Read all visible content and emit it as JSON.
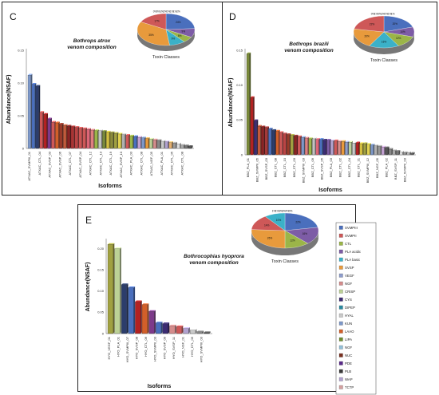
{
  "colors": {
    "SVMPIII": "#4a6fbd",
    "SVMPII": "#ce5858",
    "CTL": "#9bb548",
    "PLA acidic": "#7d5ca6",
    "PLA basic": "#3bb1c8",
    "SVSP": "#e89a3c",
    "VEGF": "#8e9dcc",
    "NGF": "#d48c8c",
    "CRISP": "#bcd196",
    "CYS": "#3c2c73",
    "DIPEP": "#2a8aa0",
    "HYAL": "#c9c9c9",
    "KUN": "#7d98c9",
    "LAAO": "#d25f2a",
    "LIPA": "#6e8c2f",
    "NGF2": "#93c0d8",
    "NUC": "#7a3020",
    "PDE": "#5a2a8a",
    "PLB": "#3a3a3a",
    "WAP": "#b1a2cf",
    "TCTP": "#d4a0a0"
  },
  "legend": [
    "SVMPIII",
    "SVMPII",
    "CTL",
    "PLA acidic",
    "PLA basic",
    "SVSP",
    "VEGF",
    "NGF",
    "CRISP",
    "CYS",
    "DIPEP",
    "HYAL",
    "KUN",
    "LAAO",
    "LIPA",
    "NGF",
    "NUC",
    "PDE",
    "PLB",
    "WAP",
    "TCTP"
  ],
  "chart_data": [
    {
      "type": "bar",
      "panel": "C",
      "title": "Bothrops atrox venom composition",
      "xlabel": "Isoforms",
      "ylabel": "Abundance(NSAF)",
      "ylim": [
        0,
        0.15
      ],
      "yticks": [
        "0",
        "0.05",
        "0.10",
        "0.15"
      ],
      "tick_labels": [
        "ATXAC_SVMPIII_01",
        "ATXAC_CTL_04",
        "ATXAC_SVSP_03",
        "ATXAC_SVSP_06",
        "ATXAC_CTL_07",
        "ATXAC_SVSP_04",
        "ATXAC_CTL_12",
        "ATXAC_CTL_13",
        "ATXAC_CTL_19",
        "ATXAC_SVSP_10",
        "ATXAC_PLA_03",
        "ATXAC_CTL_08",
        "ATXAC_NGF_05",
        "ATXAC_PLA_01",
        "ATXAC_CTL_05",
        "ATXAC_CTL_08"
      ],
      "values": [
        0.112,
        0.098,
        0.095,
        0.055,
        0.052,
        0.045,
        0.04,
        0.039,
        0.037,
        0.035,
        0.034,
        0.033,
        0.032,
        0.031,
        0.03,
        0.029,
        0.028,
        0.027,
        0.027,
        0.026,
        0.025,
        0.024,
        0.023,
        0.022,
        0.021,
        0.02,
        0.019,
        0.018,
        0.017,
        0.016,
        0.015,
        0.014,
        0.013,
        0.012,
        0.011,
        0.01,
        0.009,
        0.008,
        0.007,
        0.005,
        0.004,
        0.003
      ],
      "bar_colors": [
        "#7d98c9",
        "#4a6fbd",
        "#2c3d6b",
        "#ce5858",
        "#b22222",
        "#7d3a8a",
        "#ce5858",
        "#d25f2a",
        "#9a3a2a",
        "#c25a3a",
        "#8b2222",
        "#a33",
        "#b44",
        "#c55",
        "#ce5858",
        "#d67",
        "#e08080",
        "#9bb548",
        "#c2c2c2",
        "#7a8a3a",
        "#d4c040",
        "#8b8b3a",
        "#a0a040",
        "#e0d050",
        "#b0b0b0",
        "#ce5858",
        "#9bb548",
        "#4a6fbd",
        "#c2a0d0",
        "#7d98c9",
        "#e89a3c",
        "#bcd196",
        "#d48c8c",
        "#888",
        "#c9c9c9",
        "#b1a2cf",
        "#e5b070",
        "#999",
        "#ddd",
        "#aaa",
        "#777",
        "#555"
      ],
      "inset": {
        "title": "Toxin Classes",
        "values": [
          24,
          9,
          6,
          9,
          35,
          17
        ],
        "colors": [
          "#4a6fbd",
          "#7d5ca6",
          "#9bb548",
          "#3bb1c8",
          "#e89a3c",
          "#ce5858"
        ],
        "labels": [
          "24%",
          "9%",
          "6%",
          "9%",
          "35%",
          "17%"
        ],
        "small_labels": [
          "0%",
          "0%",
          "1%",
          "2%",
          "0%",
          "1%",
          "1%",
          "2%"
        ]
      }
    },
    {
      "type": "bar",
      "panel": "D",
      "title": "Bothrops brazili venom composition",
      "xlabel": "Isoforms",
      "ylabel": "Abundance(NSAF)",
      "ylim": [
        0,
        0.15
      ],
      "yticks": [
        "0",
        "0.05",
        "0.10",
        "0.15"
      ],
      "tick_labels": [
        "BBZ_PLA_01",
        "BBZ_SVMPII_05",
        "BBZ_SVSP_03",
        "BBZ_CTL_08",
        "BBZ_CTL_10",
        "BBZ_CTL_03",
        "BBZ_SVMPIII_03",
        "BBZ_CTL_09",
        "BBZ_SVSP_05",
        "BBZ_PLA_03",
        "BBZ_CTL_02",
        "BBZ_CTL_04",
        "BBZ_CTL_21",
        "BBZ_SVMPIII_12",
        "BBZ_NGF_05",
        "BBZ_PLA_02",
        "BBZ_SVSP_11",
        "BBZ_SVMPII_03"
      ],
      "values": [
        0.145,
        0.082,
        0.049,
        0.041,
        0.04,
        0.039,
        0.037,
        0.035,
        0.034,
        0.032,
        0.03,
        0.029,
        0.028,
        0.027,
        0.026,
        0.025,
        0.024,
        0.023,
        0.023,
        0.022,
        0.022,
        0.021,
        0.021,
        0.02,
        0.02,
        0.019,
        0.019,
        0.018,
        0.018,
        0.017,
        0.017,
        0.016,
        0.016,
        0.015,
        0.014,
        0.013,
        0.012,
        0.011,
        0.01,
        0.008,
        0.006,
        0.005,
        0.004,
        0.003,
        0.003,
        0.002
      ],
      "bar_colors": [
        "#7a8a3a",
        "#b22222",
        "#3c2c73",
        "#c25a3a",
        "#8b2222",
        "#a33a3a",
        "#4a6fbd",
        "#2c3d6b",
        "#d25f2a",
        "#ce5858",
        "#b44",
        "#9a3a2a",
        "#a0a040",
        "#8b2222",
        "#ce5858",
        "#7d98c9",
        "#e08080",
        "#9bb548",
        "#c2c2c2",
        "#d67",
        "#4a6fbd",
        "#3c2c73",
        "#7d5ca6",
        "#b1a2cf",
        "#ce5858",
        "#d48c8c",
        "#e89a3c",
        "#8e9dcc",
        "#bcd196",
        "#c9c9c9",
        "#b22222",
        "#d4c040",
        "#a0a040",
        "#e0d050",
        "#7d98c9",
        "#b0b0b0",
        "#999",
        "#c2a0d0",
        "#555",
        "#888",
        "#aaa",
        "#777",
        "#ddd",
        "#999",
        "#bbb",
        "#666"
      ],
      "inset": {
        "title": "Toxin Classes",
        "values": [
          20,
          10,
          12,
          16,
          20,
          22
        ],
        "colors": [
          "#4a6fbd",
          "#7d5ca6",
          "#9bb548",
          "#3bb1c8",
          "#e89a3c",
          "#ce5858"
        ],
        "labels": [
          "20%",
          "10%",
          "12%",
          "16%",
          "20%",
          "22%"
        ],
        "small_labels": [
          "0%",
          "1%",
          "0%",
          "1%",
          "0%",
          "1%",
          "1%"
        ]
      }
    },
    {
      "type": "bar",
      "panel": "E",
      "title": "Bothrocophias hyoprora venom composition",
      "xlabel": "Isoforms",
      "ylabel": "Abundance(NSAF)",
      "ylim": [
        0,
        0.22
      ],
      "yticks": [
        "0",
        "0.05",
        "0.10",
        "0.15",
        "0.20"
      ],
      "tick_labels": [
        "HYO_VEGF_01",
        "HYO_PLA_01",
        "HYO_SVMPIII_07",
        "HYO_SVSP_08",
        "HYO_CTL_06",
        "HYO_SVMPII_03",
        "HYO_SVSP_09",
        "HYO_SVSP_11",
        "HYO_NGF_01",
        "HYO_CTL_05",
        "HYO_SVMPIII_03"
      ],
      "values": [
        0.21,
        0.2,
        0.115,
        0.108,
        0.075,
        0.068,
        0.052,
        0.025,
        0.023,
        0.018,
        0.016,
        0.012,
        0.008,
        0.004,
        0.002
      ],
      "bar_colors": [
        "#a0a040",
        "#bcd196",
        "#2c3d6b",
        "#4a6fbd",
        "#b22222",
        "#d25f2a",
        "#7d3a8a",
        "#4a6fbd",
        "#3c2c73",
        "#d48c8c",
        "#ce5858",
        "#b1a2cf",
        "#c9c9c9",
        "#888",
        "#555"
      ],
      "inset": {
        "title": "Toxin Classes",
        "values": [
          22,
          16,
          12,
          26,
          14,
          10
        ],
        "colors": [
          "#4a6fbd",
          "#7d5ca6",
          "#9bb548",
          "#e89a3c",
          "#ce5858",
          "#3bb1c8"
        ],
        "labels": [
          "22%",
          "16%",
          "12%",
          "26%",
          "14%",
          "10%"
        ],
        "small_labels": [
          "1%",
          "1%",
          "3%",
          "3%",
          "4%",
          "0%"
        ]
      }
    }
  ]
}
